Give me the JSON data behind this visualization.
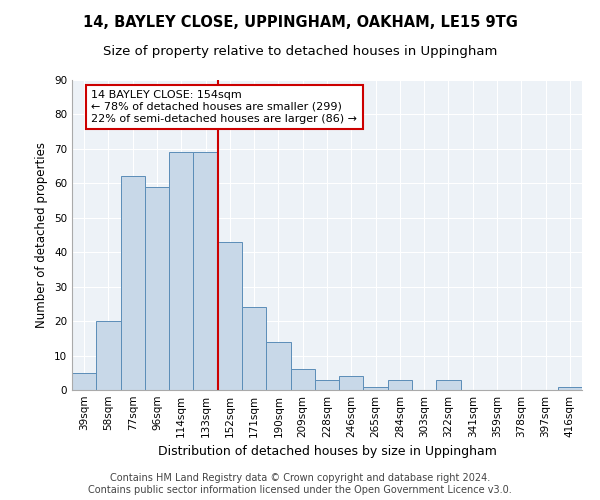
{
  "title": "14, BAYLEY CLOSE, UPPINGHAM, OAKHAM, LE15 9TG",
  "subtitle": "Size of property relative to detached houses in Uppingham",
  "xlabel": "Distribution of detached houses by size in Uppingham",
  "ylabel": "Number of detached properties",
  "categories": [
    "39sqm",
    "58sqm",
    "77sqm",
    "96sqm",
    "114sqm",
    "133sqm",
    "152sqm",
    "171sqm",
    "190sqm",
    "209sqm",
    "228sqm",
    "246sqm",
    "265sqm",
    "284sqm",
    "303sqm",
    "322sqm",
    "341sqm",
    "359sqm",
    "378sqm",
    "397sqm",
    "416sqm"
  ],
  "values": [
    5,
    20,
    62,
    59,
    69,
    69,
    43,
    24,
    14,
    6,
    3,
    4,
    1,
    3,
    0,
    3,
    0,
    0,
    0,
    0,
    1
  ],
  "bar_color": "#c8d8e8",
  "bar_edge_color": "#5b8db8",
  "vline_color": "#cc0000",
  "vline_index": 5.5,
  "annotation_text": "14 BAYLEY CLOSE: 154sqm\n← 78% of detached houses are smaller (299)\n22% of semi-detached houses are larger (86) →",
  "annotation_box_facecolor": "#ffffff",
  "annotation_box_edgecolor": "#cc0000",
  "ylim": [
    0,
    90
  ],
  "yticks": [
    0,
    10,
    20,
    30,
    40,
    50,
    60,
    70,
    80,
    90
  ],
  "footer_line1": "Contains HM Land Registry data © Crown copyright and database right 2024.",
  "footer_line2": "Contains public sector information licensed under the Open Government Licence v3.0.",
  "bg_color": "#edf2f7",
  "grid_color": "#ffffff",
  "title_fontsize": 10.5,
  "subtitle_fontsize": 9.5,
  "tick_fontsize": 7.5,
  "ylabel_fontsize": 8.5,
  "xlabel_fontsize": 9,
  "annotation_fontsize": 8,
  "footer_fontsize": 7
}
